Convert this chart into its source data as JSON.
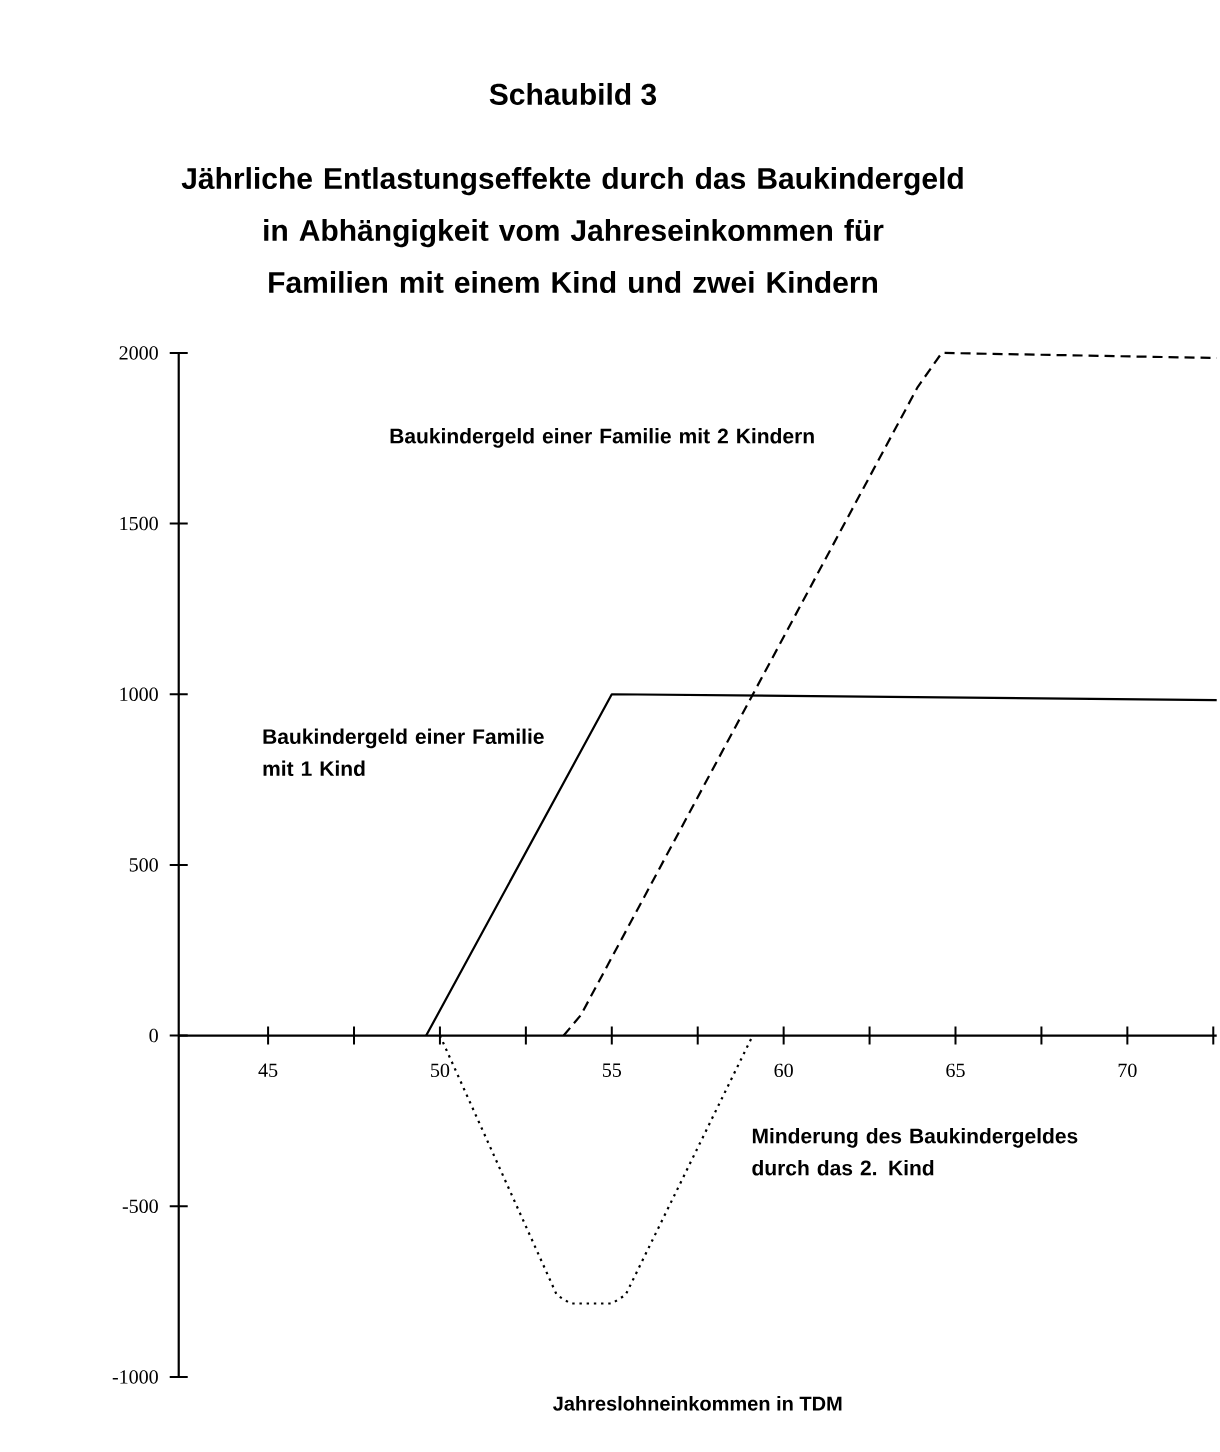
{
  "chart_data": {
    "type": "line",
    "title": "Schaubild 3",
    "subtitle": "Jährliche Entlastungseffekte durch das Baukindergeld in Abhängigkeit vom Jahreseinkommen für Familien mit einem Kind und zwei Kindern",
    "xlabel": "Jahreslohneinkommen in TDM",
    "xlim": [
      42.4,
      72.6
    ],
    "ylim": [
      -1000,
      2000
    ],
    "xticks": [
      45,
      {
        "value": 47.5,
        "label": null
      },
      50,
      {
        "value": 52.5,
        "label": null
      },
      55,
      {
        "value": 57.5,
        "label": null
      },
      60,
      {
        "value": 62.5,
        "label": null
      },
      65,
      {
        "value": 67.5,
        "label": null
      },
      70,
      {
        "value": 72.5,
        "label": null
      }
    ],
    "yticks": [
      -1000,
      -500,
      0,
      500,
      1000,
      1500,
      2000
    ],
    "grid": false,
    "legend": false,
    "marker": "none",
    "series": [
      {
        "name": "Baukindergeld einer Familie mit 1 Kind",
        "color": "#000000",
        "line_style": "solid",
        "x": [
          49.6,
          55,
          72.6
        ],
        "values": [
          0,
          1000,
          983
        ]
      },
      {
        "name": "Baukindergeld einer Familie mit 2 Kindern",
        "color": "#000000",
        "line_style": "dashed",
        "x": [
          53.6,
          54.1,
          63.9,
          64.6,
          72.6
        ],
        "values": [
          0,
          60,
          1900,
          2000,
          1985
        ]
      },
      {
        "name": "Minderung des Baukindergeldes durch das 2. Kind",
        "color": "#000000",
        "line_style": "dotted",
        "x": [
          50,
          53.4,
          53.8,
          55,
          55.4,
          59.1
        ],
        "values": [
          0,
          -760,
          -785,
          -785,
          -760,
          0
        ]
      }
    ]
  }
}
